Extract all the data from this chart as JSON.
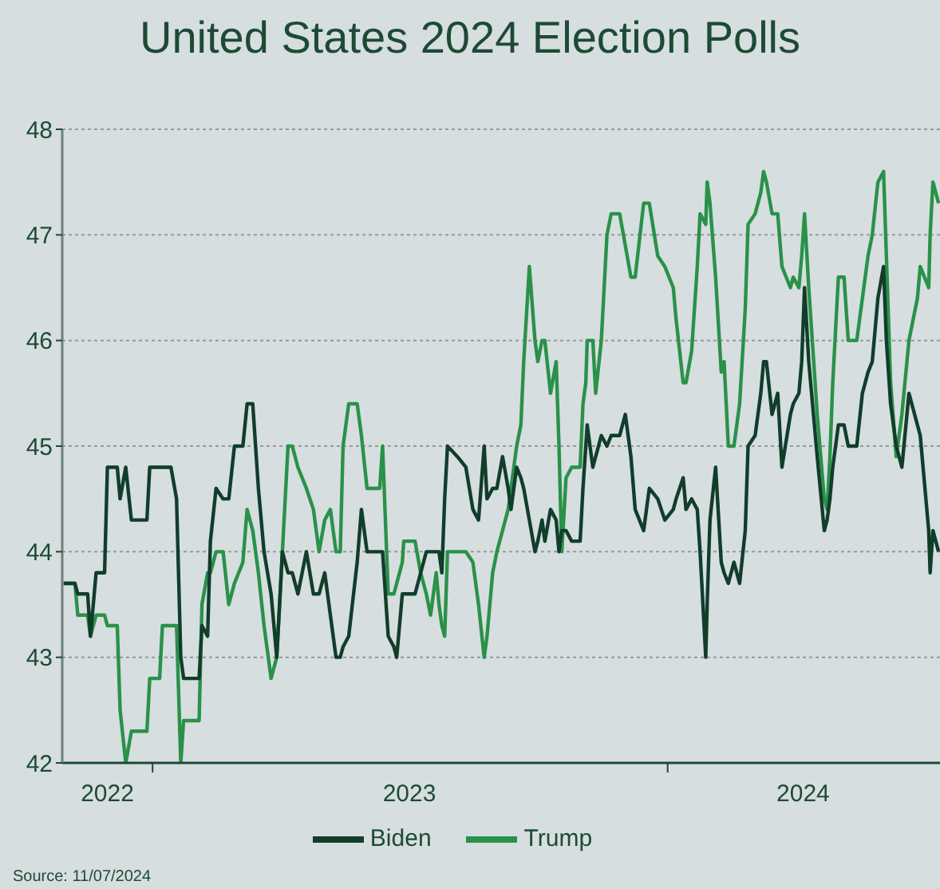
{
  "chart_data": {
    "type": "line",
    "title": "United States 2024 Election Polls",
    "annotations": [
      "Source: 11/07/2024"
    ],
    "x": [
      "2022-10-30",
      "2022-11-07",
      "2022-11-09",
      "2022-11-16",
      "2022-11-18",
      "2022-11-22",
      "2022-11-28",
      "2022-11-30",
      "2022-12-07",
      "2022-12-09",
      "2022-12-13",
      "2022-12-17",
      "2022-12-28",
      "2022-12-30",
      "2023-01-06",
      "2023-01-08",
      "2023-01-14",
      "2023-01-18",
      "2023-01-21",
      "2023-01-23",
      "2023-02-03",
      "2023-02-05",
      "2023-02-09",
      "2023-02-11",
      "2023-02-15",
      "2023-02-20",
      "2023-02-24",
      "2023-02-28",
      "2023-03-06",
      "2023-03-09",
      "2023-03-13",
      "2023-03-17",
      "2023-03-21",
      "2023-03-26",
      "2023-03-30",
      "2023-04-03",
      "2023-04-07",
      "2023-04-10",
      "2023-04-14",
      "2023-04-20",
      "2023-04-25",
      "2023-04-29",
      "2023-05-03",
      "2023-05-07",
      "2023-05-11",
      "2023-05-14",
      "2023-05-16",
      "2023-05-20",
      "2023-05-26",
      "2023-05-29",
      "2023-06-02",
      "2023-06-11",
      "2023-06-13",
      "2023-06-17",
      "2023-06-21",
      "2023-06-23",
      "2023-06-27",
      "2023-06-28",
      "2023-07-06",
      "2023-07-10",
      "2023-07-14",
      "2023-07-17",
      "2023-07-21",
      "2023-07-23",
      "2023-07-25",
      "2023-07-27",
      "2023-07-29",
      "2023-08-05",
      "2023-08-11",
      "2023-08-16",
      "2023-08-20",
      "2023-08-24",
      "2023-08-26",
      "2023-08-30",
      "2023-09-02",
      "2023-09-06",
      "2023-09-10",
      "2023-09-12",
      "2023-09-16",
      "2023-09-19",
      "2023-09-21",
      "2023-09-25",
      "2023-09-29",
      "2023-10-01",
      "2023-10-04",
      "2023-10-06",
      "2023-10-10",
      "2023-10-14",
      "2023-10-16",
      "2023-10-18",
      "2023-10-21",
      "2023-10-25",
      "2023-10-31",
      "2023-11-02",
      "2023-11-04",
      "2023-11-05",
      "2023-11-09",
      "2023-11-11",
      "2023-11-15",
      "2023-11-19",
      "2023-11-22",
      "2023-11-28",
      "2023-12-02",
      "2023-12-06",
      "2023-12-09",
      "2023-12-15",
      "2023-12-19",
      "2023-12-25",
      "2023-12-30",
      "2024-01-05",
      "2024-01-07",
      "2024-01-12",
      "2024-01-14",
      "2024-01-18",
      "2024-01-22",
      "2024-01-24",
      "2024-01-28",
      "2024-01-29",
      "2024-01-31",
      "2024-02-04",
      "2024-02-08",
      "2024-02-10",
      "2024-02-13",
      "2024-02-17",
      "2024-02-21",
      "2024-02-25",
      "2024-02-27",
      "2024-03-03",
      "2024-03-07",
      "2024-03-09",
      "2024-03-11",
      "2024-03-15",
      "2024-03-19",
      "2024-03-22",
      "2024-03-28",
      "2024-03-30",
      "2024-04-03",
      "2024-04-05",
      "2024-04-07",
      "2024-04-10",
      "2024-04-16",
      "2024-04-21",
      "2024-04-23",
      "2024-04-25",
      "2024-04-27",
      "2024-05-01",
      "2024-05-05",
      "2024-05-08",
      "2024-05-14",
      "2024-05-18",
      "2024-05-22",
      "2024-05-25",
      "2024-05-29",
      "2024-06-02",
      "2024-06-04",
      "2024-06-07",
      "2024-06-11",
      "2024-06-15",
      "2024-06-20",
      "2024-06-26",
      "2024-06-28",
      "2024-07-04",
      "2024-07-05",
      "2024-07-07",
      "2024-07-11"
    ],
    "series": [
      {
        "name": "Trump",
        "color": "#2a9149",
        "values": [
          43.7,
          43.7,
          43.4,
          43.4,
          43.2,
          43.4,
          43.4,
          43.3,
          43.3,
          42.5,
          42.0,
          42.3,
          42.3,
          42.8,
          42.8,
          43.3,
          43.3,
          43.3,
          42.0,
          42.4,
          42.4,
          43.5,
          43.8,
          43.8,
          44.0,
          44.0,
          43.5,
          43.7,
          43.9,
          44.4,
          44.2,
          43.8,
          43.3,
          42.8,
          43.0,
          44.0,
          45.0,
          45.0,
          44.8,
          44.6,
          44.4,
          44.0,
          44.3,
          44.4,
          44.0,
          44.0,
          45.0,
          45.4,
          45.4,
          45.1,
          44.6,
          44.6,
          45.0,
          43.6,
          43.6,
          43.7,
          43.9,
          44.1,
          44.1,
          43.8,
          43.6,
          43.4,
          43.8,
          43.5,
          43.3,
          43.2,
          44.0,
          44.0,
          44.0,
          43.9,
          43.5,
          43.0,
          43.2,
          43.8,
          44.0,
          44.2,
          44.4,
          44.6,
          45.0,
          45.2,
          45.8,
          46.7,
          46.0,
          45.8,
          46.0,
          46.0,
          45.5,
          45.8,
          45.0,
          44.0,
          44.7,
          44.8,
          44.8,
          45.4,
          45.6,
          46.0,
          46.0,
          45.5,
          46.0,
          47.0,
          47.2,
          47.2,
          46.9,
          46.6,
          46.6,
          47.3,
          47.3,
          46.8,
          46.7,
          46.5,
          46.2,
          45.6,
          45.6,
          45.9,
          46.7,
          47.2,
          47.1,
          47.5,
          47.3,
          46.6,
          45.7,
          45.8,
          45.0,
          45.0,
          45.4,
          46.3,
          47.1,
          47.2,
          47.4,
          47.6,
          47.5,
          47.2,
          47.2,
          46.7,
          46.5,
          46.6,
          46.5,
          46.8,
          47.2,
          46.5,
          45.3,
          44.5,
          44.4,
          44.9,
          45.6,
          46.6,
          46.6,
          46.0,
          46.0,
          46.4,
          46.8,
          47.0,
          47.5,
          47.6,
          46.8,
          45.6,
          44.9,
          45.3,
          46.0,
          46.4,
          46.7,
          46.5,
          47.0,
          47.5,
          47.3
        ]
      },
      {
        "name": "Biden",
        "color": "#113d2b",
        "values": [
          43.7,
          43.7,
          43.6,
          43.6,
          43.2,
          43.8,
          43.8,
          44.8,
          44.8,
          44.5,
          44.8,
          44.3,
          44.3,
          44.8,
          44.8,
          44.8,
          44.8,
          44.5,
          43.0,
          42.8,
          42.8,
          43.3,
          43.2,
          44.1,
          44.6,
          44.5,
          44.5,
          45.0,
          45.0,
          45.4,
          45.4,
          44.6,
          44.0,
          43.6,
          43.0,
          44.0,
          43.8,
          43.8,
          43.6,
          44.0,
          43.6,
          43.6,
          43.8,
          43.4,
          43.0,
          43.0,
          43.1,
          43.2,
          43.9,
          44.4,
          44.0,
          44.0,
          44.0,
          43.2,
          43.1,
          43.0,
          43.6,
          43.6,
          43.6,
          43.8,
          44.0,
          44.0,
          44.0,
          44.0,
          43.8,
          44.5,
          45.0,
          44.9,
          44.8,
          44.4,
          44.3,
          45.0,
          44.5,
          44.6,
          44.6,
          44.9,
          44.6,
          44.4,
          44.8,
          44.7,
          44.6,
          44.3,
          44.0,
          44.1,
          44.3,
          44.1,
          44.4,
          44.3,
          44.0,
          44.2,
          44.2,
          44.1,
          44.1,
          44.6,
          45.0,
          45.2,
          44.8,
          44.9,
          45.1,
          45.0,
          45.1,
          45.1,
          45.3,
          44.9,
          44.4,
          44.2,
          44.6,
          44.5,
          44.3,
          44.4,
          44.5,
          44.7,
          44.4,
          44.5,
          44.4,
          44.0,
          43.0,
          43.5,
          44.3,
          44.8,
          43.9,
          43.8,
          43.7,
          43.9,
          43.7,
          44.2,
          45.0,
          45.1,
          45.5,
          45.8,
          45.8,
          45.3,
          45.5,
          44.8,
          45.3,
          45.4,
          45.5,
          45.8,
          46.5,
          45.8,
          44.9,
          44.2,
          44.3,
          44.5,
          44.8,
          45.2,
          45.2,
          45.0,
          45.0,
          45.5,
          45.7,
          45.8,
          46.4,
          46.7,
          46.0,
          45.4,
          45.0,
          44.8,
          45.5,
          45.2,
          45.1,
          44.2,
          43.8,
          44.2,
          44.0
        ]
      }
    ],
    "xlim": [
      "2022-10-29",
      "2024-07-12"
    ],
    "xticks": [
      {
        "value": "2022-11-30",
        "label": "2022"
      },
      {
        "value": "2023-01-01",
        "label": null
      },
      {
        "value": "2023-07-02",
        "label": "2023"
      },
      {
        "value": "2024-01-01",
        "label": null
      },
      {
        "value": "2024-04-06",
        "label": "2024"
      }
    ],
    "ylim": [
      42,
      48
    ],
    "yticks": [
      42,
      43,
      44,
      45,
      46,
      47,
      48
    ],
    "grid": "y",
    "legend": "bottom",
    "marker": "none",
    "line_style": "solid"
  }
}
